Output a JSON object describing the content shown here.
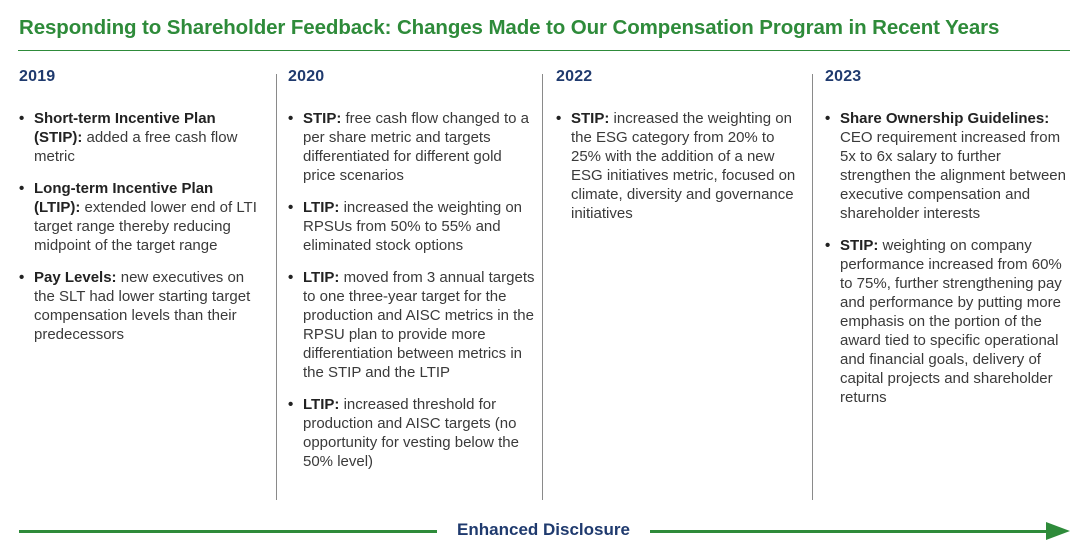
{
  "title": "Responding to Shareholder Feedback: Changes Made to Our Compensation Program in Recent Years",
  "colors": {
    "accent_green": "#2e8b3a",
    "year_navy": "#1f3a6e",
    "body_text": "#3a3a3a"
  },
  "columns": [
    {
      "year": "2019",
      "items": [
        {
          "lead": "Short-term Incentive Plan (STIP):",
          "text": "added a free cash flow metric"
        },
        {
          "lead": "Long-term Incentive Plan (LTIP):",
          "text": "extended lower end of LTI target range thereby reducing midpoint of the target range"
        },
        {
          "lead": "Pay Levels:",
          "text": "new executives on the SLT had lower starting target compensation levels than their predecessors"
        }
      ]
    },
    {
      "year": "2020",
      "items": [
        {
          "lead": "STIP:",
          "text": "free cash flow changed to a per share metric and targets differentiated for different gold price scenarios"
        },
        {
          "lead": "LTIP:",
          "text": "increased the weighting on RPSUs from 50% to 55% and eliminated stock options"
        },
        {
          "lead": "LTIP:",
          "text": "moved from 3 annual targets to one three-year target for the production and AISC metrics in the RPSU plan to provide more differentiation between metrics in the STIP and the LTIP"
        },
        {
          "lead": "LTIP:",
          "text": "increased threshold for production and AISC targets (no opportunity for vesting below the 50% level)"
        }
      ]
    },
    {
      "year": "2022",
      "items": [
        {
          "lead": "STIP:",
          "text": "increased the weighting on the ESG category from 20% to 25% with the addition of a new ESG initiatives metric, focused on climate, diversity and governance initiatives"
        }
      ]
    },
    {
      "year": "2023",
      "items": [
        {
          "lead": "Share Ownership Guidelines:",
          "text": "CEO requirement increased from 5x to 6x salary to further strengthen the alignment between executive compensation and shareholder interests"
        },
        {
          "lead": "STIP:",
          "text": "weighting on company performance increased from 60% to 75%, further strengthening pay and performance by putting more emphasis on the portion of the award tied to specific operational and financial goals, delivery of capital projects and shareholder returns"
        }
      ]
    }
  ],
  "footer": {
    "arrow_label": "Enhanced Disclosure"
  },
  "bullet_glyph": "•"
}
